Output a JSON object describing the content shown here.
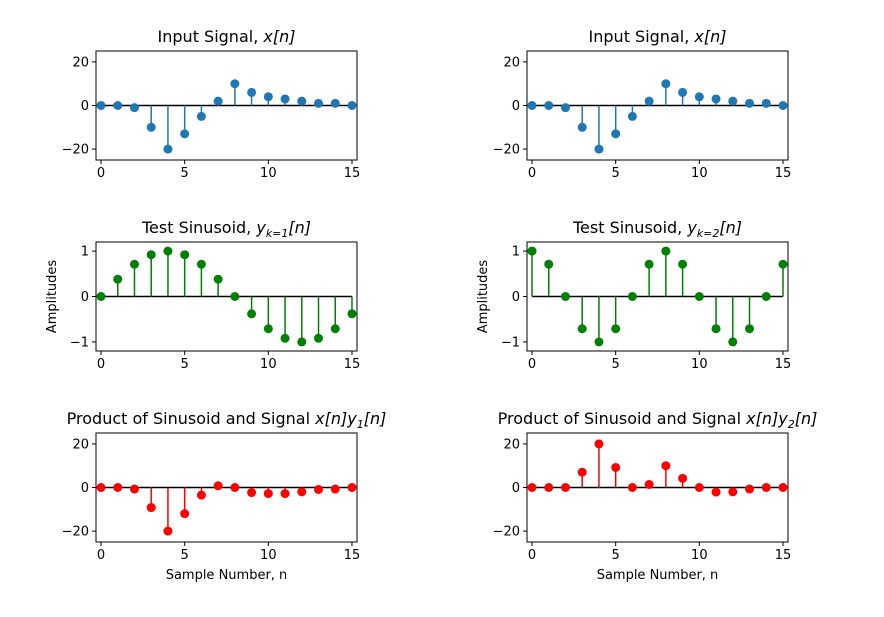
{
  "chart_data": [
    {
      "type": "stem",
      "title": "Input Signal, x[n]",
      "xlabel": "",
      "ylabel": "",
      "x": [
        0,
        1,
        2,
        3,
        4,
        5,
        6,
        7,
        8,
        9,
        10,
        11,
        12,
        13,
        14,
        15
      ],
      "values": [
        0,
        0,
        -1,
        -10,
        -20,
        -13,
        -5,
        2,
        10,
        6,
        4,
        3,
        2,
        1,
        1,
        0
      ],
      "xlim": [
        -0.3,
        15.3
      ],
      "ylim": [
        -25,
        25
      ],
      "xticks": [
        0,
        5,
        10,
        15
      ],
      "yticks": [
        -20,
        0,
        20
      ],
      "color": "#1f77b4"
    },
    {
      "type": "stem",
      "title": "Input Signal, x[n]",
      "xlabel": "",
      "ylabel": "",
      "x": [
        0,
        1,
        2,
        3,
        4,
        5,
        6,
        7,
        8,
        9,
        10,
        11,
        12,
        13,
        14,
        15
      ],
      "values": [
        0,
        0,
        -1,
        -10,
        -20,
        -13,
        -5,
        2,
        10,
        6,
        4,
        3,
        2,
        1,
        1,
        0
      ],
      "xlim": [
        -0.3,
        15.3
      ],
      "ylim": [
        -25,
        25
      ],
      "xticks": [
        0,
        5,
        10,
        15
      ],
      "yticks": [
        -20,
        0,
        20
      ],
      "color": "#1f77b4"
    },
    {
      "type": "stem",
      "title": "Test Sinusoid, y_{k=1}[n]",
      "xlabel": "",
      "ylabel": "Amplitudes",
      "x": [
        0,
        1,
        2,
        3,
        4,
        5,
        6,
        7,
        8,
        9,
        10,
        11,
        12,
        13,
        14,
        15
      ],
      "values": [
        0,
        0.38,
        0.71,
        0.92,
        1,
        0.92,
        0.71,
        0.38,
        0,
        -0.38,
        -0.71,
        -0.92,
        -1,
        -0.92,
        -0.71,
        -0.38
      ],
      "xlim": [
        -0.3,
        15.3
      ],
      "ylim": [
        -1.2,
        1.2
      ],
      "xticks": [
        0,
        5,
        10,
        15
      ],
      "yticks": [
        -1,
        0,
        1
      ],
      "color": "#008000"
    },
    {
      "type": "stem",
      "title": "Test Sinusoid, y_{k=2}[n]",
      "xlabel": "",
      "ylabel": "Amplitudes",
      "x": [
        0,
        1,
        2,
        3,
        4,
        5,
        6,
        7,
        8,
        9,
        10,
        11,
        12,
        13,
        14,
        15
      ],
      "values": [
        1,
        0.71,
        0,
        -0.71,
        -1,
        -0.71,
        0,
        0.71,
        1,
        0.71,
        0,
        -0.71,
        -1,
        -0.71,
        0,
        0.71
      ],
      "xlim": [
        -0.3,
        15.3
      ],
      "ylim": [
        -1.2,
        1.2
      ],
      "xticks": [
        0,
        5,
        10,
        15
      ],
      "yticks": [
        -1,
        0,
        1
      ],
      "color": "#008000"
    },
    {
      "type": "stem",
      "title": "Product of Sinusoid and Signal x[n]y_1[n]",
      "xlabel": "Sample Number, n",
      "ylabel": "",
      "x": [
        0,
        1,
        2,
        3,
        4,
        5,
        6,
        7,
        8,
        9,
        10,
        11,
        12,
        13,
        14,
        15
      ],
      "values": [
        0,
        0,
        -0.7,
        -9.2,
        -20,
        -12,
        -3.5,
        0.8,
        0,
        -2.3,
        -2.8,
        -2.8,
        -2,
        -0.9,
        -0.7,
        0
      ],
      "xlim": [
        -0.3,
        15.3
      ],
      "ylim": [
        -25,
        25
      ],
      "xticks": [
        0,
        5,
        10,
        15
      ],
      "yticks": [
        -20,
        0,
        20
      ],
      "color": "#ff0000"
    },
    {
      "type": "stem",
      "title": "Product of Sinusoid and Signal x[n]y_2[n]",
      "xlabel": "Sample Number, n",
      "ylabel": "",
      "x": [
        0,
        1,
        2,
        3,
        4,
        5,
        6,
        7,
        8,
        9,
        10,
        11,
        12,
        13,
        14,
        15
      ],
      "values": [
        0,
        0,
        0,
        7,
        20,
        9.2,
        0,
        1.4,
        10,
        4.2,
        0,
        -2.1,
        -2,
        -0.7,
        0,
        0
      ],
      "xlim": [
        -0.3,
        15.3
      ],
      "ylim": [
        -25,
        25
      ],
      "xticks": [
        0,
        5,
        10,
        15
      ],
      "yticks": [
        -20,
        0,
        20
      ],
      "color": "#ff0000"
    }
  ]
}
